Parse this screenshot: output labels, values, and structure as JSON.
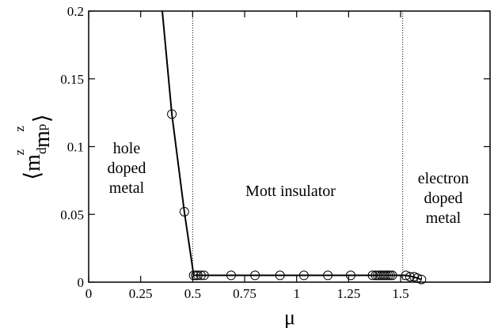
{
  "chart_data": {
    "type": "line",
    "xlabel": "μ",
    "ylabel": [
      "⟨m",
      "d",
      "z",
      "m",
      "p",
      "z",
      "⟩"
    ],
    "xlim": [
      0,
      1.93
    ],
    "ylim": [
      0,
      0.2
    ],
    "xticks": [
      0,
      0.25,
      0.5,
      0.75,
      1,
      1.25,
      1.5
    ],
    "yticks": [
      0,
      0.05,
      0.1,
      0.15,
      0.2
    ],
    "vlines": [
      0.5,
      1.51
    ],
    "annotations": [
      [
        "hole",
        "doped",
        "metal"
      ],
      [
        "Mott insulator"
      ],
      [
        "electron",
        "doped",
        "metal"
      ]
    ],
    "series": [
      {
        "style": "line",
        "color": "#000000",
        "x": [
          0.354,
          0.4,
          0.46,
          0.505,
          1.5,
          1.525,
          1.56,
          1.6
        ],
        "values": [
          0.2,
          0.124,
          0.052,
          0.005,
          0.005,
          0.005,
          0.004,
          0.002
        ]
      },
      {
        "style": "circles",
        "color": "#000000",
        "x": [
          0.4,
          0.46,
          0.505,
          0.515,
          0.525,
          0.54,
          0.555,
          0.685,
          0.8,
          0.92,
          1.035,
          1.15,
          1.26,
          1.365,
          1.38,
          1.39,
          1.4,
          1.41,
          1.42,
          1.43,
          1.44,
          1.45,
          1.46,
          1.525,
          1.545,
          1.565,
          1.58,
          1.6
        ],
        "values": [
          0.124,
          0.052,
          0.005,
          0.005,
          0.005,
          0.005,
          0.005,
          0.005,
          0.005,
          0.005,
          0.005,
          0.005,
          0.005,
          0.005,
          0.005,
          0.005,
          0.005,
          0.005,
          0.005,
          0.005,
          0.005,
          0.005,
          0.005,
          0.005,
          0.004,
          0.004,
          0.003,
          0.002
        ]
      }
    ]
  }
}
